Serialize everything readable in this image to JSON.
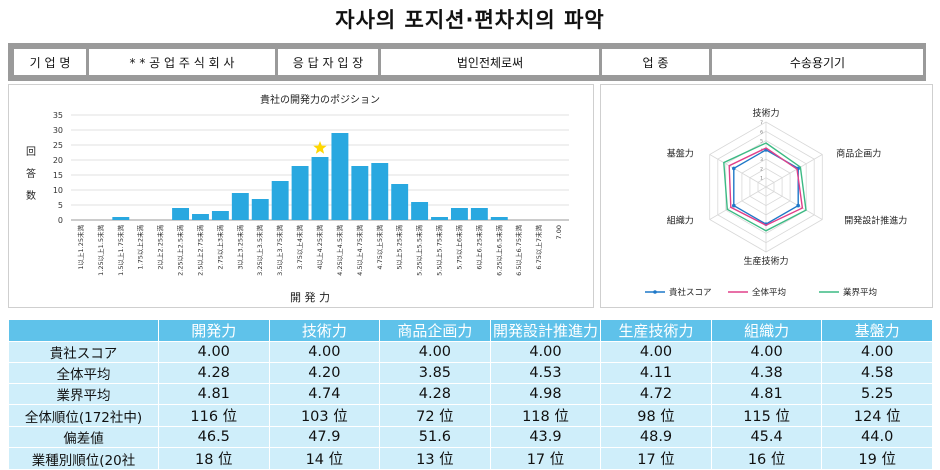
{
  "page": {
    "title": "자사의 포지션·편차치의 파악"
  },
  "company_info": {
    "label_company": "기 업 명",
    "company_name": "* * 공 업 주 식 회 사",
    "label_respondent": "응 답 자 입 장",
    "respondent": "법인전체로써",
    "label_industry": "업 종",
    "industry": "수송용기기"
  },
  "colors": {
    "bar": "#29a8e0",
    "star": "#ffd700",
    "company_line": "#1f78c8",
    "overall_line": "#e0408a",
    "industry_line": "#3cba84",
    "table_header": "#5fc2ea",
    "table_cell": "#cfeefa"
  },
  "chart_data": [
    {
      "type": "bar",
      "title": "貴社の開発力のポジション",
      "xlabel": "開 発 力",
      "ylabel": "回答数",
      "ylim": [
        0,
        35
      ],
      "yticks": [
        "0",
        "5",
        "10",
        "15",
        "20",
        "25",
        "30",
        "35"
      ],
      "grid": true,
      "categories": [
        "1以上1.25未満",
        "1.25以上1.5未満",
        "1.5以上1.75未満",
        "1.75以上2未満",
        "2以上2.25未満",
        "2.25以上2.5未満",
        "2.5以上2.75未満",
        "2.75以上3未満",
        "3以上3.25未満",
        "3.25以上3.5未満",
        "3.5以上3.75未満",
        "3.75以上4未満",
        "4以上4.25未満",
        "4.25以上4.5未満",
        "4.5以上4.75未満",
        "4.75以上5未満",
        "5以上5.25未満",
        "5.25以上5.5未満",
        "5.5以上5.75未満",
        "5.75以上6未満",
        "6以上6.25未満",
        "6.25以上6.5未満",
        "6.5以上6.75未満",
        "6.75以上7未満",
        "7.00"
      ],
      "values": [
        0,
        0,
        1,
        0,
        0,
        4,
        2,
        3,
        9,
        7,
        13,
        18,
        21,
        29,
        18,
        19,
        12,
        6,
        1,
        4,
        4,
        1,
        0,
        0,
        0
      ],
      "highlight": {
        "category_index": 12,
        "marker": "star"
      }
    },
    {
      "type": "radar",
      "axes": [
        "技術力",
        "商品企画力",
        "開発設計推進力",
        "生産技術力",
        "組織力",
        "基盤力"
      ],
      "rlim": [
        0,
        7
      ],
      "rticks": [
        "1",
        "2",
        "3",
        "4",
        "5",
        "6",
        "7"
      ],
      "legend_position": "bottom",
      "series": [
        {
          "name": "貴社スコア",
          "values": [
            4.0,
            4.0,
            4.0,
            4.0,
            4.0,
            4.0
          ]
        },
        {
          "name": "全体平均",
          "values": [
            4.2,
            3.85,
            4.53,
            4.11,
            4.38,
            4.58
          ]
        },
        {
          "name": "業界平均",
          "values": [
            4.74,
            4.28,
            4.98,
            4.72,
            4.81,
            5.25
          ]
        }
      ]
    }
  ],
  "table": {
    "columns": [
      "開発力",
      "技術力",
      "商品企画力",
      "開発設計推進力",
      "生産技術力",
      "組織力",
      "基盤力"
    ],
    "rows": [
      {
        "label": "貴社スコア",
        "values": [
          "4.00",
          "4.00",
          "4.00",
          "4.00",
          "4.00",
          "4.00",
          "4.00"
        ]
      },
      {
        "label": "全体平均",
        "values": [
          "4.28",
          "4.20",
          "3.85",
          "4.53",
          "4.11",
          "4.38",
          "4.58"
        ]
      },
      {
        "label": "業界平均",
        "values": [
          "4.81",
          "4.74",
          "4.28",
          "4.98",
          "4.72",
          "4.81",
          "5.25"
        ]
      },
      {
        "label": "全体順位(172社中)",
        "values": [
          "116 位",
          "103 位",
          "72 位",
          "118 位",
          "98 位",
          "115 位",
          "124 位"
        ]
      },
      {
        "label": "偏差値",
        "values": [
          "46.5",
          "47.9",
          "51.6",
          "43.9",
          "48.9",
          "45.4",
          "44.0"
        ]
      },
      {
        "label": "業種別順位(20社",
        "values": [
          "18 位",
          "14 位",
          "13 位",
          "17 位",
          "17 位",
          "16 位",
          "19 位"
        ]
      }
    ]
  }
}
